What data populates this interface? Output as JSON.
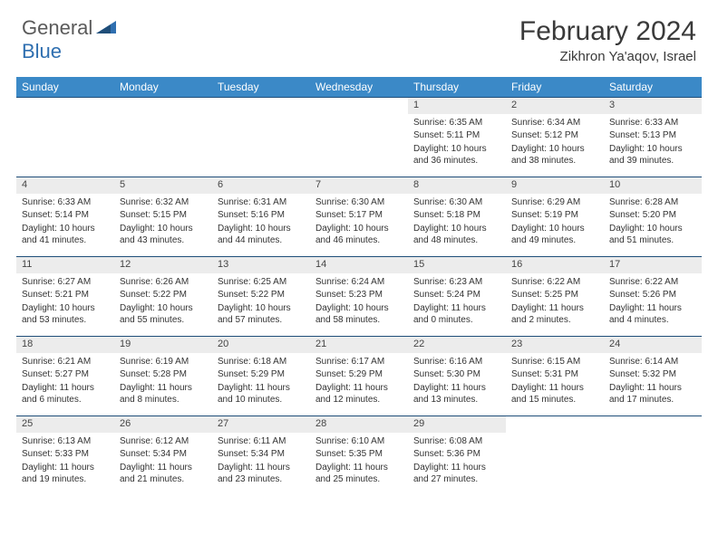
{
  "logo": {
    "part1": "General",
    "part2": "Blue"
  },
  "title": "February 2024",
  "location": "Zikhron Ya'aqov, Israel",
  "colors": {
    "header_bg": "#3b89c7",
    "header_text": "#ffffff",
    "daynum_bg": "#ececec",
    "row_border": "#1f4e79",
    "logo_gray": "#5a5a5a",
    "logo_blue": "#2f6fb0"
  },
  "weekdays": [
    "Sunday",
    "Monday",
    "Tuesday",
    "Wednesday",
    "Thursday",
    "Friday",
    "Saturday"
  ],
  "weeks": [
    [
      null,
      null,
      null,
      null,
      {
        "n": "1",
        "sr": "Sunrise: 6:35 AM",
        "ss": "Sunset: 5:11 PM",
        "dl": "Daylight: 10 hours and 36 minutes."
      },
      {
        "n": "2",
        "sr": "Sunrise: 6:34 AM",
        "ss": "Sunset: 5:12 PM",
        "dl": "Daylight: 10 hours and 38 minutes."
      },
      {
        "n": "3",
        "sr": "Sunrise: 6:33 AM",
        "ss": "Sunset: 5:13 PM",
        "dl": "Daylight: 10 hours and 39 minutes."
      }
    ],
    [
      {
        "n": "4",
        "sr": "Sunrise: 6:33 AM",
        "ss": "Sunset: 5:14 PM",
        "dl": "Daylight: 10 hours and 41 minutes."
      },
      {
        "n": "5",
        "sr": "Sunrise: 6:32 AM",
        "ss": "Sunset: 5:15 PM",
        "dl": "Daylight: 10 hours and 43 minutes."
      },
      {
        "n": "6",
        "sr": "Sunrise: 6:31 AM",
        "ss": "Sunset: 5:16 PM",
        "dl": "Daylight: 10 hours and 44 minutes."
      },
      {
        "n": "7",
        "sr": "Sunrise: 6:30 AM",
        "ss": "Sunset: 5:17 PM",
        "dl": "Daylight: 10 hours and 46 minutes."
      },
      {
        "n": "8",
        "sr": "Sunrise: 6:30 AM",
        "ss": "Sunset: 5:18 PM",
        "dl": "Daylight: 10 hours and 48 minutes."
      },
      {
        "n": "9",
        "sr": "Sunrise: 6:29 AM",
        "ss": "Sunset: 5:19 PM",
        "dl": "Daylight: 10 hours and 49 minutes."
      },
      {
        "n": "10",
        "sr": "Sunrise: 6:28 AM",
        "ss": "Sunset: 5:20 PM",
        "dl": "Daylight: 10 hours and 51 minutes."
      }
    ],
    [
      {
        "n": "11",
        "sr": "Sunrise: 6:27 AM",
        "ss": "Sunset: 5:21 PM",
        "dl": "Daylight: 10 hours and 53 minutes."
      },
      {
        "n": "12",
        "sr": "Sunrise: 6:26 AM",
        "ss": "Sunset: 5:22 PM",
        "dl": "Daylight: 10 hours and 55 minutes."
      },
      {
        "n": "13",
        "sr": "Sunrise: 6:25 AM",
        "ss": "Sunset: 5:22 PM",
        "dl": "Daylight: 10 hours and 57 minutes."
      },
      {
        "n": "14",
        "sr": "Sunrise: 6:24 AM",
        "ss": "Sunset: 5:23 PM",
        "dl": "Daylight: 10 hours and 58 minutes."
      },
      {
        "n": "15",
        "sr": "Sunrise: 6:23 AM",
        "ss": "Sunset: 5:24 PM",
        "dl": "Daylight: 11 hours and 0 minutes."
      },
      {
        "n": "16",
        "sr": "Sunrise: 6:22 AM",
        "ss": "Sunset: 5:25 PM",
        "dl": "Daylight: 11 hours and 2 minutes."
      },
      {
        "n": "17",
        "sr": "Sunrise: 6:22 AM",
        "ss": "Sunset: 5:26 PM",
        "dl": "Daylight: 11 hours and 4 minutes."
      }
    ],
    [
      {
        "n": "18",
        "sr": "Sunrise: 6:21 AM",
        "ss": "Sunset: 5:27 PM",
        "dl": "Daylight: 11 hours and 6 minutes."
      },
      {
        "n": "19",
        "sr": "Sunrise: 6:19 AM",
        "ss": "Sunset: 5:28 PM",
        "dl": "Daylight: 11 hours and 8 minutes."
      },
      {
        "n": "20",
        "sr": "Sunrise: 6:18 AM",
        "ss": "Sunset: 5:29 PM",
        "dl": "Daylight: 11 hours and 10 minutes."
      },
      {
        "n": "21",
        "sr": "Sunrise: 6:17 AM",
        "ss": "Sunset: 5:29 PM",
        "dl": "Daylight: 11 hours and 12 minutes."
      },
      {
        "n": "22",
        "sr": "Sunrise: 6:16 AM",
        "ss": "Sunset: 5:30 PM",
        "dl": "Daylight: 11 hours and 13 minutes."
      },
      {
        "n": "23",
        "sr": "Sunrise: 6:15 AM",
        "ss": "Sunset: 5:31 PM",
        "dl": "Daylight: 11 hours and 15 minutes."
      },
      {
        "n": "24",
        "sr": "Sunrise: 6:14 AM",
        "ss": "Sunset: 5:32 PM",
        "dl": "Daylight: 11 hours and 17 minutes."
      }
    ],
    [
      {
        "n": "25",
        "sr": "Sunrise: 6:13 AM",
        "ss": "Sunset: 5:33 PM",
        "dl": "Daylight: 11 hours and 19 minutes."
      },
      {
        "n": "26",
        "sr": "Sunrise: 6:12 AM",
        "ss": "Sunset: 5:34 PM",
        "dl": "Daylight: 11 hours and 21 minutes."
      },
      {
        "n": "27",
        "sr": "Sunrise: 6:11 AM",
        "ss": "Sunset: 5:34 PM",
        "dl": "Daylight: 11 hours and 23 minutes."
      },
      {
        "n": "28",
        "sr": "Sunrise: 6:10 AM",
        "ss": "Sunset: 5:35 PM",
        "dl": "Daylight: 11 hours and 25 minutes."
      },
      {
        "n": "29",
        "sr": "Sunrise: 6:08 AM",
        "ss": "Sunset: 5:36 PM",
        "dl": "Daylight: 11 hours and 27 minutes."
      },
      null,
      null
    ]
  ]
}
